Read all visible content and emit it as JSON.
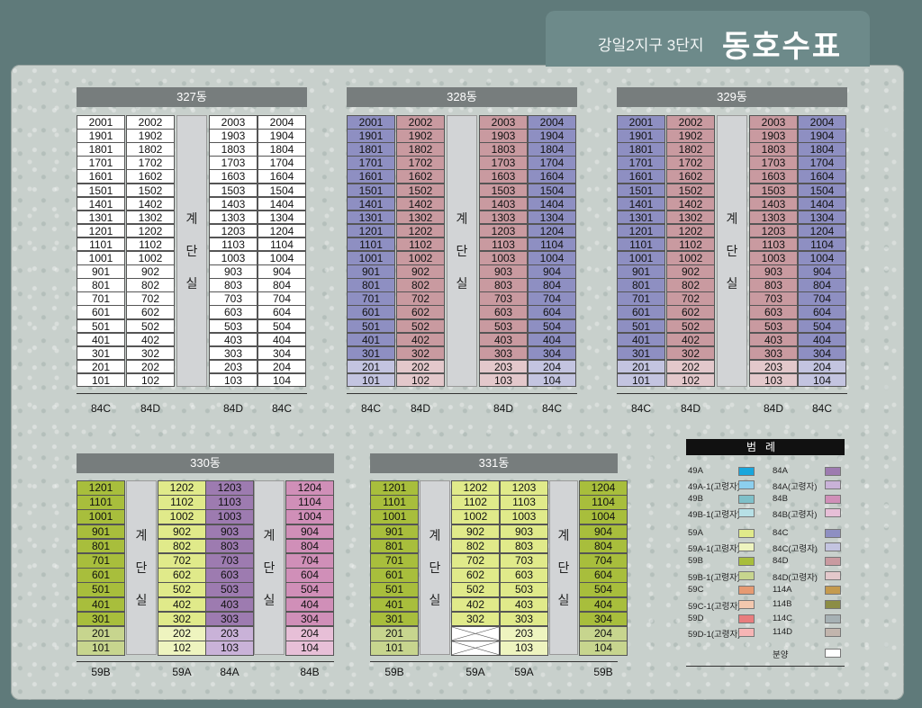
{
  "title": {
    "sub": "강일2지구 3단지",
    "main": "동호수표"
  },
  "stair_chars": [
    "계",
    "단",
    "실"
  ],
  "colors": {
    "49A": "#19a6dc",
    "49A-1": "#8ccfee",
    "49B": "#7fc0c9",
    "49B-1": "#b7e0e6",
    "59A": "#e0ea8a",
    "59A-1": "#eef4bf",
    "59B": "#a8be3c",
    "59B-1": "#c7d58e",
    "59C": "#e69a72",
    "59C-1": "#f2c7ae",
    "59D": "#e87d7e",
    "59D-1": "#f6b5b5",
    "84A": "#9d7bb0",
    "84A-1": "#c9b2d8",
    "84B": "#d08fb8",
    "84B-1": "#e7bfd7",
    "84C": "#8e8fc2",
    "84C-1": "#c3c4e0",
    "84D": "#c99aa0",
    "84D-1": "#e3c8cb",
    "114A": "#c49a4e",
    "114B": "#8c8d45",
    "114C": "#a6b1b4",
    "114D": "#c2b5ad",
    "sale": "#ffffff"
  },
  "buildings": [
    {
      "name": "327동",
      "columns": [
        {
          "units": [
            "2001",
            "1901",
            "1801",
            "1701",
            "1601",
            "1501",
            "1401",
            "1301",
            "1201",
            "1101",
            "1001",
            "901",
            "801",
            "701",
            "601",
            "501",
            "401",
            "301",
            "201",
            "101"
          ]
        },
        {
          "units": [
            "2002",
            "1902",
            "1802",
            "1702",
            "1602",
            "1502",
            "1402",
            "1302",
            "1202",
            "1102",
            "1002",
            "902",
            "802",
            "702",
            "602",
            "502",
            "402",
            "302",
            "202",
            "102"
          ]
        },
        {
          "units": [
            "2003",
            "1903",
            "1803",
            "1703",
            "1603",
            "1503",
            "1403",
            "1303",
            "1203",
            "1103",
            "1003",
            "903",
            "803",
            "703",
            "603",
            "503",
            "403",
            "303",
            "203",
            "103"
          ]
        },
        {
          "units": [
            "2004",
            "1904",
            "1804",
            "1704",
            "1604",
            "1504",
            "1404",
            "1304",
            "1204",
            "1104",
            "1004",
            "904",
            "804",
            "704",
            "604",
            "504",
            "404",
            "304",
            "204",
            "104"
          ]
        }
      ],
      "types": [
        "84C",
        "84D",
        "84D",
        "84C"
      ]
    },
    {
      "name": "328동",
      "columns": [
        {
          "units": [
            "2001",
            "1901",
            "1801",
            "1701",
            "1601",
            "1501",
            "1401",
            "1301",
            "1201",
            "1101",
            "1001",
            "901",
            "801",
            "701",
            "601",
            "501",
            "401",
            "301",
            "201",
            "101"
          ]
        },
        {
          "units": [
            "2002",
            "1902",
            "1802",
            "1702",
            "1602",
            "1502",
            "1402",
            "1302",
            "1202",
            "1102",
            "1002",
            "902",
            "802",
            "702",
            "602",
            "502",
            "402",
            "302",
            "202",
            "102"
          ]
        },
        {
          "units": [
            "2003",
            "1903",
            "1803",
            "1703",
            "1603",
            "1503",
            "1403",
            "1303",
            "1203",
            "1103",
            "1003",
            "903",
            "803",
            "703",
            "603",
            "503",
            "403",
            "303",
            "203",
            "103"
          ]
        },
        {
          "units": [
            "2004",
            "1904",
            "1804",
            "1704",
            "1604",
            "1504",
            "1404",
            "1304",
            "1204",
            "1104",
            "1004",
            "904",
            "804",
            "704",
            "604",
            "504",
            "404",
            "304",
            "204",
            "104"
          ]
        }
      ],
      "types": [
        "84C",
        "84D",
        "84D",
        "84C"
      ]
    },
    {
      "name": "329동",
      "columns": [
        {
          "units": [
            "2001",
            "1901",
            "1801",
            "1701",
            "1601",
            "1501",
            "1401",
            "1301",
            "1201",
            "1101",
            "1001",
            "901",
            "801",
            "701",
            "601",
            "501",
            "401",
            "301",
            "201",
            "101"
          ]
        },
        {
          "units": [
            "2002",
            "1902",
            "1802",
            "1702",
            "1602",
            "1502",
            "1402",
            "1302",
            "1202",
            "1102",
            "1002",
            "902",
            "802",
            "702",
            "602",
            "502",
            "402",
            "302",
            "202",
            "102"
          ]
        },
        {
          "units": [
            "2003",
            "1903",
            "1803",
            "1703",
            "1603",
            "1503",
            "1403",
            "1303",
            "1203",
            "1103",
            "1003",
            "903",
            "803",
            "703",
            "603",
            "503",
            "403",
            "303",
            "203",
            "103"
          ]
        },
        {
          "units": [
            "2004",
            "1904",
            "1804",
            "1704",
            "1604",
            "1504",
            "1404",
            "1304",
            "1204",
            "1104",
            "1004",
            "904",
            "804",
            "704",
            "604",
            "504",
            "404",
            "304",
            "204",
            "104"
          ]
        }
      ],
      "types": [
        "84C",
        "84D",
        "84D",
        "84C"
      ]
    },
    {
      "name": "330동",
      "columns": [
        {
          "units": [
            "1201",
            "1101",
            "1001",
            "901",
            "801",
            "701",
            "601",
            "501",
            "401",
            "301",
            "201",
            "101"
          ]
        },
        {
          "units": [
            "1202",
            "1102",
            "1002",
            "902",
            "802",
            "702",
            "602",
            "502",
            "402",
            "302",
            "202",
            "102"
          ]
        },
        {
          "units": [
            "1203",
            "1103",
            "1003",
            "903",
            "803",
            "703",
            "603",
            "503",
            "403",
            "303",
            "203",
            "103"
          ]
        },
        {
          "units": [
            "1204",
            "1104",
            "1004",
            "904",
            "804",
            "704",
            "604",
            "504",
            "404",
            "304",
            "204",
            "104"
          ]
        }
      ],
      "types": [
        "59B",
        "59A",
        "84A",
        "84B"
      ]
    },
    {
      "name": "331동",
      "columns": [
        {
          "units": [
            "1201",
            "1101",
            "1001",
            "901",
            "801",
            "701",
            "601",
            "501",
            "401",
            "301",
            "201",
            "101"
          ]
        },
        {
          "units": [
            "1202",
            "1102",
            "1002",
            "902",
            "802",
            "702",
            "602",
            "502",
            "402",
            "302",
            "",
            ""
          ]
        },
        {
          "units": [
            "1203",
            "1103",
            "1003",
            "903",
            "803",
            "703",
            "603",
            "503",
            "403",
            "303",
            "203",
            "103"
          ]
        },
        {
          "units": [
            "1204",
            "1104",
            "1004",
            "904",
            "804",
            "704",
            "604",
            "504",
            "404",
            "304",
            "204",
            "104"
          ]
        }
      ],
      "types": [
        "59B",
        "59A",
        "59A",
        "59B"
      ]
    }
  ],
  "legend": {
    "title": "범례",
    "left": [
      {
        "label": "49A",
        "color": "49A"
      },
      {
        "label": "49A-1(고령자)",
        "color": "49A-1"
      },
      {
        "label": "49B",
        "color": "49B"
      },
      {
        "label": "49B-1(고령자)",
        "color": "49B-1"
      },
      {
        "label": "59A",
        "color": "59A"
      },
      {
        "label": "59A-1(고령자)",
        "color": "59A-1"
      },
      {
        "label": "59B",
        "color": "59B"
      },
      {
        "label": "59B-1(고령자)",
        "color": "59B-1"
      },
      {
        "label": "59C",
        "color": "59C"
      },
      {
        "label": "59C-1(고령자)",
        "color": "59C-1"
      },
      {
        "label": "59D",
        "color": "59D"
      },
      {
        "label": "59D-1(고령자)",
        "color": "59D-1"
      }
    ],
    "right": [
      {
        "label": "84A",
        "color": "84A"
      },
      {
        "label": "84A(고령자)",
        "color": "84A-1"
      },
      {
        "label": "84B",
        "color": "84B"
      },
      {
        "label": "84B(고령자)",
        "color": "84B-1"
      },
      {
        "label": "84C",
        "color": "84C"
      },
      {
        "label": "84C(고령자)",
        "color": "84C-1"
      },
      {
        "label": "84D",
        "color": "84D"
      },
      {
        "label": "84D(고령자)",
        "color": "84D-1"
      },
      {
        "label": "114A",
        "color": "114A"
      },
      {
        "label": "114B",
        "color": "114B"
      },
      {
        "label": "114C",
        "color": "114C"
      },
      {
        "label": "114D",
        "color": "114D"
      },
      {
        "label": "분양",
        "color": "sale"
      }
    ]
  }
}
